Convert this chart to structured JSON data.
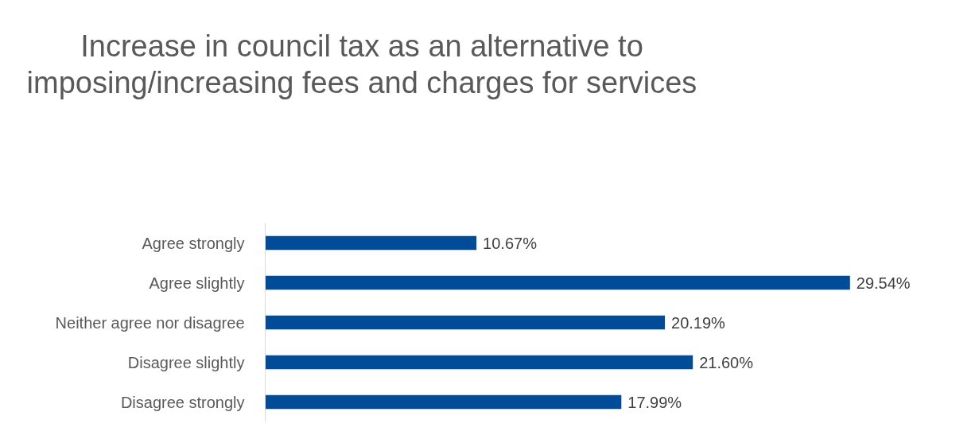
{
  "chart_data": {
    "type": "bar",
    "orientation": "horizontal",
    "title": "Increase in council tax as an alternative to imposing/increasing fees and charges for services",
    "categories": [
      "Agree strongly",
      "Agree slightly",
      "Neither agree nor disagree",
      "Disagree slightly",
      "Disagree strongly"
    ],
    "values": [
      10.67,
      29.54,
      20.19,
      21.6,
      17.99
    ],
    "value_labels": [
      "10.67%",
      "29.54%",
      "20.19%",
      "21.60%",
      "17.99%"
    ],
    "color": "#004c99",
    "grid": false
  }
}
